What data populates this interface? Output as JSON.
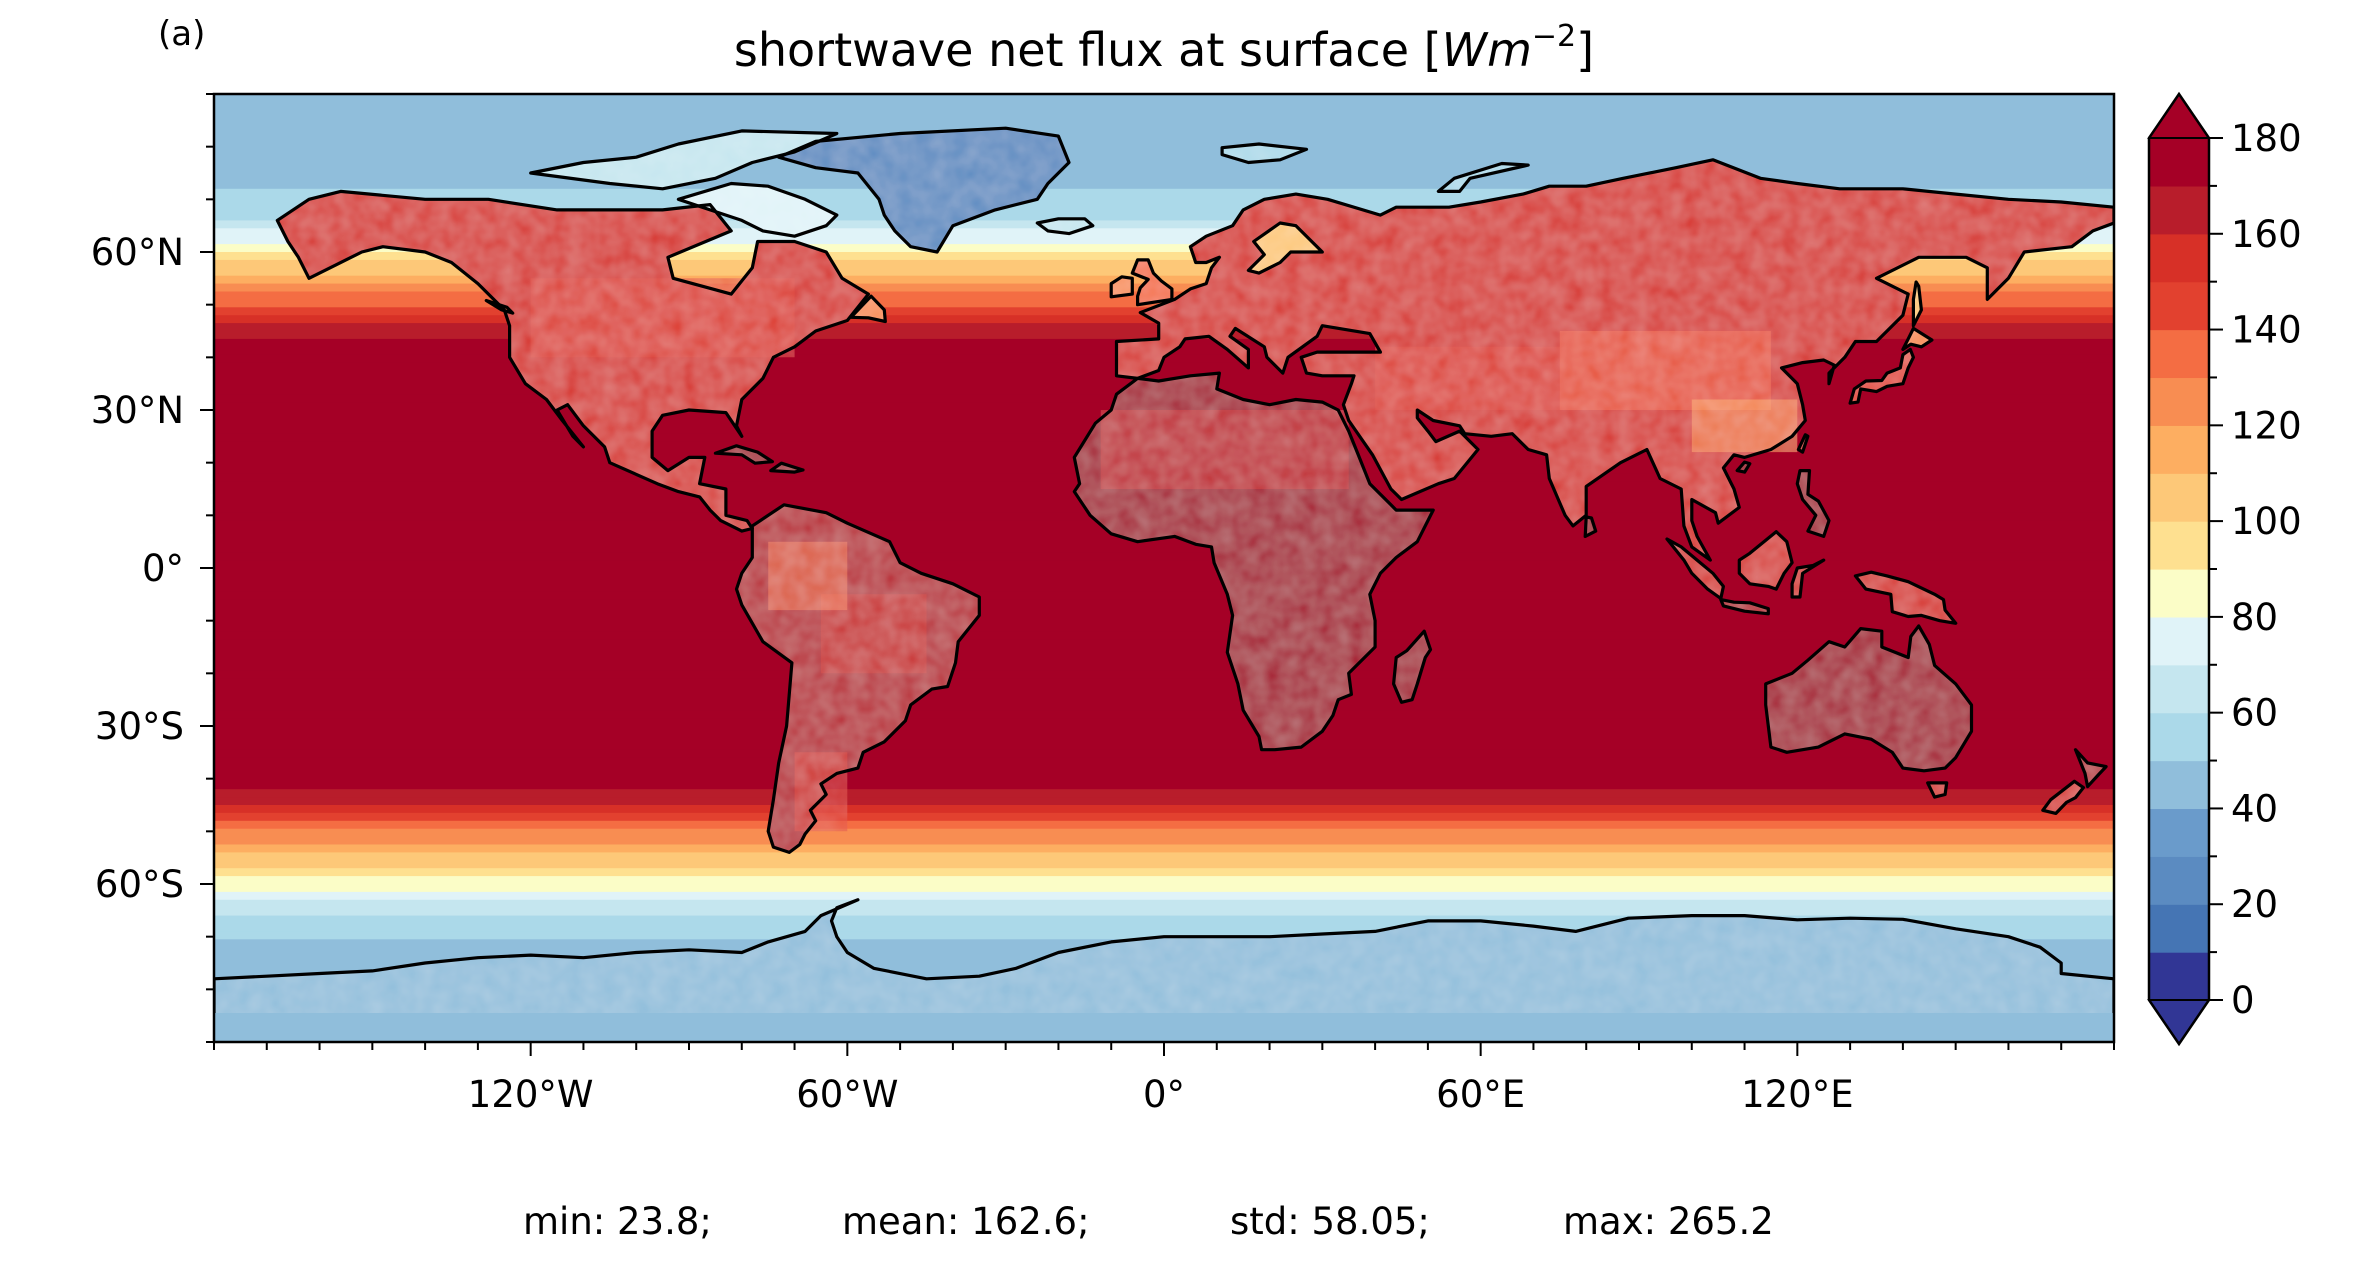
{
  "panel_label": "(a)",
  "title": "shortwave net flux at surface [W m⁻²]",
  "title_parts": {
    "main": "shortwave net flux at surface [",
    "unit_base": "Wm",
    "unit_exp": "−2",
    "close": "]"
  },
  "map": {
    "projection": "PlateCarree",
    "lon_range": [
      -180,
      180
    ],
    "lat_range": [
      -90,
      90
    ],
    "coastlines": true,
    "xticks": [
      {
        "value": -120,
        "label": "120°W"
      },
      {
        "value": -60,
        "label": "60°W"
      },
      {
        "value": 0,
        "label": "0°"
      },
      {
        "value": 60,
        "label": "60°E"
      },
      {
        "value": 120,
        "label": "120°E"
      }
    ],
    "yticks": [
      {
        "value": 60,
        "label": "60°N"
      },
      {
        "value": 30,
        "label": "30°N"
      },
      {
        "value": 0,
        "label": "0°"
      },
      {
        "value": -30,
        "label": "30°S"
      },
      {
        "value": -60,
        "label": "60°S"
      }
    ]
  },
  "colorbar": {
    "cmap": "RdYlBu_r",
    "range": [
      0,
      180
    ],
    "step": 10,
    "extend": "both",
    "ticks": [
      "0",
      "20",
      "40",
      "60",
      "80",
      "100",
      "120",
      "140",
      "160",
      "180"
    ],
    "colors": [
      "#313695",
      "#4575b4",
      "#5b8bc1",
      "#6a9bcb",
      "#90bedb",
      "#abd9e9",
      "#c5e6ef",
      "#e0f3f8",
      "#fbfdc7",
      "#fee090",
      "#fdc878",
      "#fdae61",
      "#f88d52",
      "#f46d43",
      "#e2412f",
      "#d73027",
      "#b81d2b",
      "#a50026"
    ],
    "under_color": "#313695",
    "over_color": "#a50026"
  },
  "stats": {
    "min": "min: 23.8;",
    "mean": "mean: 162.6;",
    "std": "std: 58.05;",
    "max": "max: 265.2"
  }
}
